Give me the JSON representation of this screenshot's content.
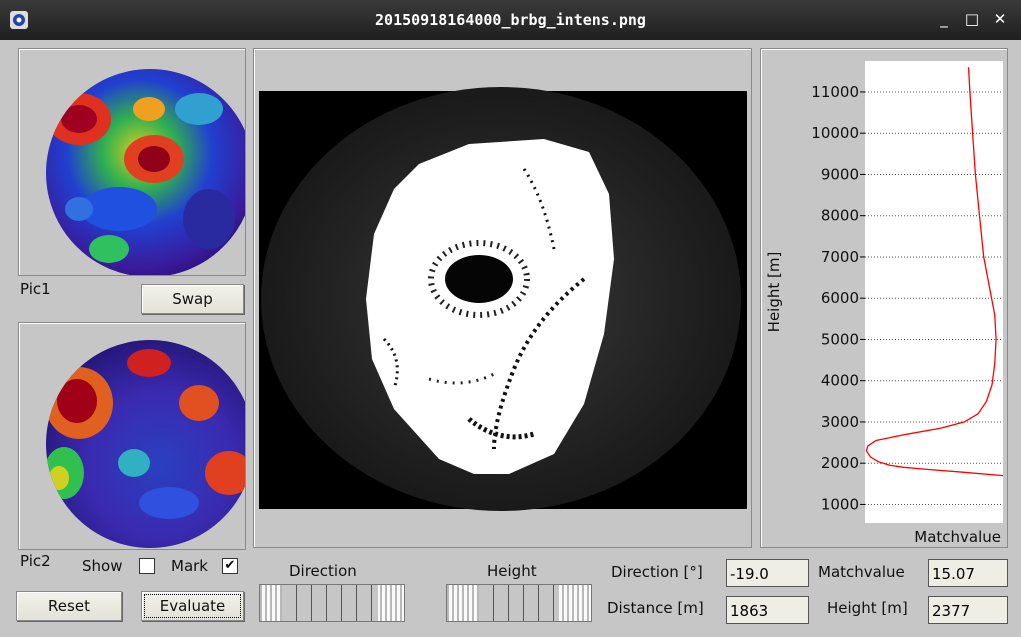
{
  "window": {
    "title": "20150918164000_brbg_intens.png",
    "minimize": "_",
    "maximize": "□",
    "close": "✕"
  },
  "left": {
    "pic1_label": "Pic1",
    "swap_label": "Swap",
    "pic2_label": "Pic2",
    "show_label": "Show",
    "show_checked": false,
    "mark_label": "Mark",
    "mark_checked": true,
    "reset_label": "Reset",
    "evaluate_label": "Evaluate"
  },
  "controls": {
    "direction_slider_label": "Direction",
    "height_slider_label": "Height",
    "direction_label": "Direction [°]",
    "direction_value": "-19.0",
    "distance_label": "Distance [m]",
    "distance_value": "1863",
    "matchvalue_label": "Matchvalue",
    "matchvalue_value": "15.07",
    "height_label": "Height [m]",
    "height_value": "2377"
  },
  "chart_data": {
    "type": "line",
    "xlabel": "Matchvalue",
    "ylabel": "Height [m]",
    "ylim": [
      550,
      11750
    ],
    "xlim": [
      0,
      100
    ],
    "yticks": [
      1000,
      2000,
      3000,
      4000,
      5000,
      6000,
      7000,
      8000,
      9000,
      10000,
      11000
    ],
    "tick_labels": [
      "1000",
      "2000",
      "3000",
      "4000",
      "5000",
      "6000",
      "7000",
      "8000",
      "9000",
      "10000",
      "11000"
    ],
    "grid": true,
    "series": [
      {
        "color": "#ff0000",
        "points": [
          [
            100,
            1700
          ],
          [
            72,
            1780
          ],
          [
            45,
            1850
          ],
          [
            28,
            1900
          ],
          [
            18,
            1950
          ],
          [
            10,
            2030
          ],
          [
            4,
            2150
          ],
          [
            1,
            2300
          ],
          [
            2,
            2420
          ],
          [
            8,
            2550
          ],
          [
            30,
            2700
          ],
          [
            55,
            2850
          ],
          [
            72,
            3000
          ],
          [
            82,
            3200
          ],
          [
            88,
            3500
          ],
          [
            92,
            3900
          ],
          [
            94,
            4400
          ],
          [
            95,
            5000
          ],
          [
            94,
            5600
          ],
          [
            90,
            6300
          ],
          [
            86,
            7000
          ],
          [
            83,
            8000
          ],
          [
            80,
            9000
          ],
          [
            78,
            10000
          ],
          [
            76,
            11000
          ],
          [
            75,
            11600
          ]
        ]
      }
    ]
  }
}
